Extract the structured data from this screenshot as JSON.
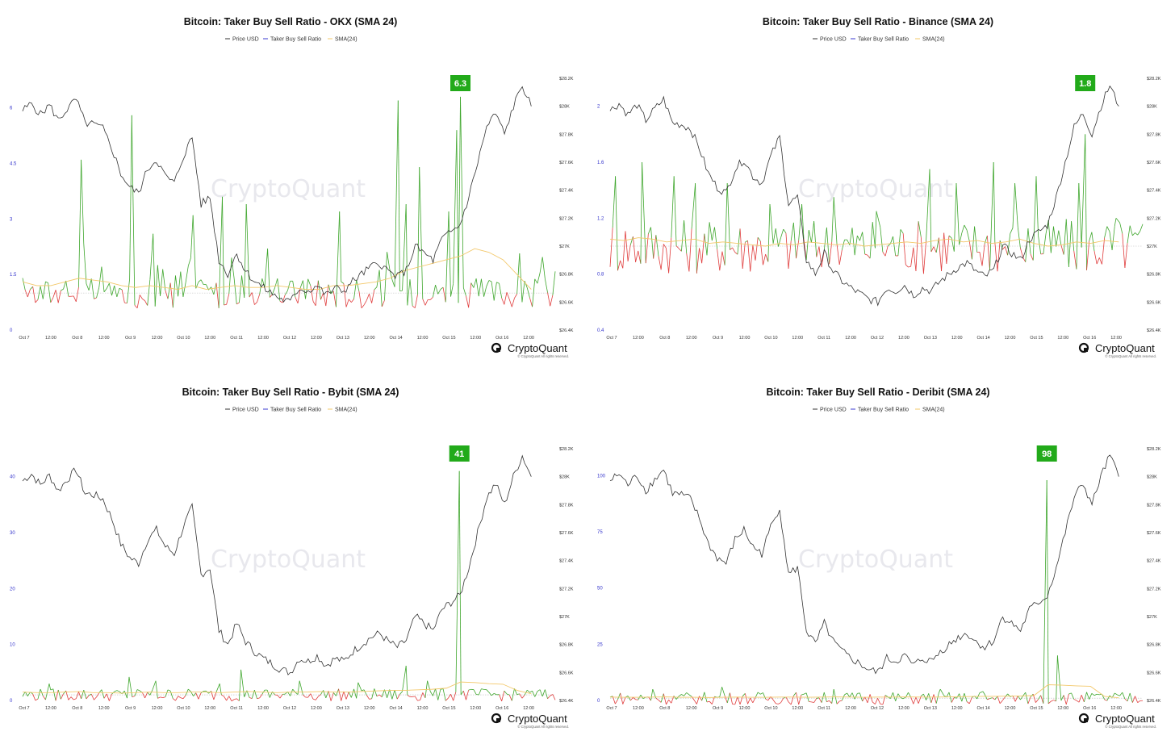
{
  "brand": {
    "name": "CryptoQuant",
    "copyright": "© CryptoQuant All rights reserved.",
    "watermark": "CryptoQuant"
  },
  "colors": {
    "price": "#333333",
    "ratio_up": "#3ea62c",
    "ratio_down": "#e03c3c",
    "ratio_legend": "#3b3bd1",
    "sma": "#f3c86a",
    "badge": "#22aa1a"
  },
  "legend": [
    "Price USD",
    "Taker Buy Sell Ratio",
    "SMA(24)"
  ],
  "x_ticks": [
    "Oct 7",
    "12:00",
    "Oct 8",
    "12:00",
    "Oct 9",
    "12:00",
    "Oct 10",
    "12:00",
    "Oct 11",
    "12:00",
    "Oct 12",
    "12:00",
    "Oct 13",
    "12:00",
    "Oct 14",
    "12:00",
    "Oct 15",
    "12:00",
    "Oct 16",
    "12:00"
  ],
  "chart_data": [
    {
      "type": "line",
      "title": "Bitcoin: Taker Buy Sell Ratio - OKX (SMA 24)",
      "left_ticks": [
        "0",
        "1.5",
        "3",
        "4.5",
        "6"
      ],
      "left_values": [
        0,
        1.5,
        3,
        4.5,
        6
      ],
      "ylim": [
        0,
        6.8
      ],
      "right_ticks": [
        "$26.4K",
        "$26.6K",
        "$26.8K",
        "$27K",
        "$27.2K",
        "$27.4K",
        "$27.6K",
        "$27.8K",
        "$28K",
        "$28.2K"
      ],
      "right_lim": [
        26400,
        28200
      ],
      "badge": "6.3",
      "peak": {
        "x": 0.822,
        "value": 6.3
      },
      "ratio_base": 1.0,
      "series": [
        {
          "name": "Price USD",
          "values": [
            27970,
            28020,
            27940,
            28010,
            27900,
            27980,
            28050,
            27880,
            27870,
            27840,
            27700,
            27520,
            27420,
            27380,
            27550,
            27620,
            27500,
            27450,
            27640,
            27780,
            27300,
            27350,
            26900,
            26800,
            26950,
            26820,
            26750,
            26700,
            26660,
            26620,
            26600,
            26700,
            26680,
            26720,
            26650,
            26700,
            26680,
            26750,
            26800,
            26850,
            26880,
            26820,
            26780,
            26830,
            27000,
            26950,
            26900,
            27050,
            27100,
            27150,
            27350,
            27600,
            27850,
            27950,
            27800,
            28000,
            28150,
            28000
          ]
        },
        {
          "name": "Taker Buy Sell Ratio",
          "spikes": [
            [
              0.11,
              4.6
            ],
            [
              0.205,
              5.8
            ],
            [
              0.245,
              2.6
            ],
            [
              0.32,
              3.1
            ],
            [
              0.375,
              3.6
            ],
            [
              0.42,
              3.4
            ],
            [
              0.46,
              2.2
            ],
            [
              0.595,
              3.2
            ],
            [
              0.705,
              6.2
            ],
            [
              0.72,
              3.4
            ],
            [
              0.745,
              4.4
            ],
            [
              0.8,
              3.2
            ],
            [
              0.815,
              5.4
            ],
            [
              0.822,
              6.3
            ]
          ]
        },
        {
          "name": "SMA(24)",
          "values": [
            1.3,
            1.2,
            1.2,
            1.3,
            1.4,
            1.35,
            1.3,
            1.2,
            1.15,
            1.2,
            1.15,
            1.1,
            1.2,
            1.1,
            1.15,
            1.2,
            1.15,
            1.15,
            1.2,
            1.15,
            1.1,
            1.1,
            1.2,
            1.2,
            1.25,
            1.3,
            1.4,
            1.6,
            1.7,
            1.8,
            1.9,
            2.0,
            2.2,
            2.1,
            1.9,
            1.5,
            1.1
          ]
        }
      ]
    },
    {
      "type": "line",
      "title": "Bitcoin: Taker Buy Sell Ratio - Binance (SMA 24)",
      "left_ticks": [
        "0.4",
        "0.8",
        "1.2",
        "1.6",
        "2"
      ],
      "left_values": [
        0.4,
        0.8,
        1.2,
        1.6,
        2
      ],
      "ylim": [
        0.4,
        2.2
      ],
      "right_ticks": [
        "$26.4K",
        "$26.6K",
        "$26.8K",
        "$27K",
        "$27.2K",
        "$27.4K",
        "$27.6K",
        "$27.8K",
        "$28K",
        "$28.2K"
      ],
      "right_lim": [
        26400,
        28200
      ],
      "badge": "1.8",
      "peak": {
        "x": 0.892,
        "value": 1.8
      },
      "ratio_base": 1.0,
      "series": [
        {
          "name": "Price USD",
          "values": [
            27970,
            28020,
            27940,
            28010,
            27900,
            27980,
            28050,
            27880,
            27870,
            27840,
            27700,
            27520,
            27420,
            27380,
            27550,
            27620,
            27500,
            27450,
            27640,
            27780,
            27300,
            27350,
            26900,
            26800,
            26950,
            26820,
            26750,
            26700,
            26660,
            26620,
            26600,
            26700,
            26680,
            26720,
            26650,
            26700,
            26680,
            26750,
            26800,
            26850,
            26880,
            26820,
            26780,
            26830,
            27000,
            26950,
            26900,
            27050,
            27100,
            27150,
            27350,
            27600,
            27850,
            27950,
            27800,
            28000,
            28150,
            28000
          ]
        },
        {
          "name": "Taker Buy Sell Ratio",
          "spikes": [
            [
              0.01,
              1.5
            ],
            [
              0.06,
              1.6
            ],
            [
              0.12,
              1.5
            ],
            [
              0.16,
              1.45
            ],
            [
              0.22,
              1.45
            ],
            [
              0.3,
              1.3
            ],
            [
              0.36,
              1.3
            ],
            [
              0.42,
              1.35
            ],
            [
              0.5,
              1.25
            ],
            [
              0.6,
              1.55
            ],
            [
              0.65,
              1.45
            ],
            [
              0.72,
              1.6
            ],
            [
              0.76,
              1.45
            ],
            [
              0.8,
              1.5
            ],
            [
              0.88,
              1.45
            ],
            [
              0.892,
              1.8
            ],
            [
              0.95,
              1.2
            ]
          ]
        },
        {
          "name": "SMA(24)",
          "values": [
            1.05,
            1.04,
            1.06,
            1.05,
            1.03,
            1.04,
            1.05,
            1.02,
            1.03,
            1.02,
            1.01,
            1.0,
            1.02,
            1.01,
            1.03,
            1.02,
            1.01,
            1.02,
            1.0,
            1.01,
            1.02,
            1.03,
            1.02,
            1.04,
            1.05,
            1.03,
            1.04,
            1.02,
            1.03,
            1.05,
            1.02,
            1.0,
            1.01,
            1.03,
            1.02,
            1.04,
            1.03
          ]
        }
      ]
    },
    {
      "type": "line",
      "title": "Bitcoin: Taker Buy Sell Ratio - Bybit (SMA 24)",
      "left_ticks": [
        "0",
        "10",
        "20",
        "30",
        "40"
      ],
      "left_values": [
        0,
        10,
        20,
        30,
        40
      ],
      "ylim": [
        0,
        45
      ],
      "right_ticks": [
        "$26.4K",
        "$26.6K",
        "$26.8K",
        "$27K",
        "$27.2K",
        "$27.4K",
        "$27.6K",
        "$27.8K",
        "$28K",
        "$28.2K"
      ],
      "right_lim": [
        26400,
        28200
      ],
      "badge": "41",
      "peak": {
        "x": 0.82,
        "value": 41
      },
      "ratio_base": 1.0,
      "series": [
        {
          "name": "Price USD",
          "values": [
            27970,
            28020,
            27940,
            28010,
            27900,
            27980,
            28050,
            27880,
            27870,
            27840,
            27700,
            27520,
            27420,
            27380,
            27550,
            27620,
            27500,
            27450,
            27640,
            27780,
            27300,
            27350,
            26900,
            26800,
            26950,
            26820,
            26750,
            26700,
            26660,
            26620,
            26600,
            26700,
            26680,
            26720,
            26650,
            26700,
            26680,
            26750,
            26800,
            26850,
            26880,
            26820,
            26780,
            26830,
            27000,
            26950,
            26900,
            27050,
            27100,
            27150,
            27350,
            27600,
            27850,
            27950,
            27800,
            28000,
            28150,
            28000
          ]
        },
        {
          "name": "Taker Buy Sell Ratio",
          "spikes": [
            [
              0.05,
              3
            ],
            [
              0.2,
              4.2
            ],
            [
              0.25,
              3.5
            ],
            [
              0.37,
              3
            ],
            [
              0.41,
              5.5
            ],
            [
              0.52,
              3.5
            ],
            [
              0.63,
              3.2
            ],
            [
              0.72,
              6.2
            ],
            [
              0.76,
              3.5
            ],
            [
              0.82,
              41
            ]
          ]
        },
        {
          "name": "SMA(24)",
          "values": [
            1.5,
            1.4,
            1.4,
            1.5,
            1.6,
            1.4,
            1.4,
            1.3,
            1.4,
            1.5,
            1.4,
            1.4,
            1.5,
            1.5,
            1.4,
            1.5,
            1.6,
            1.5,
            1.4,
            1.5,
            1.5,
            1.6,
            1.5,
            1.5,
            1.6,
            1.7,
            1.8,
            1.8,
            1.9,
            2.0,
            2.2,
            3.3,
            3.2,
            3.0,
            2.9,
            1.8,
            1.2
          ]
        }
      ]
    },
    {
      "type": "line",
      "title": "Bitcoin: Taker Buy Sell Ratio - Deribit (SMA 24)",
      "left_ticks": [
        "0",
        "25",
        "50",
        "75",
        "100"
      ],
      "left_values": [
        0,
        25,
        50,
        75,
        100
      ],
      "ylim": [
        0,
        112
      ],
      "right_ticks": [
        "$26.4K",
        "$26.6K",
        "$26.8K",
        "$27K",
        "$27.2K",
        "$27.4K",
        "$27.6K",
        "$27.8K",
        "$28K",
        "$28.2K"
      ],
      "right_lim": [
        26400,
        28200
      ],
      "badge": "98",
      "peak": {
        "x": 0.82,
        "value": 98
      },
      "ratio_base": 1.0,
      "series": [
        {
          "name": "Price USD",
          "values": [
            27970,
            28020,
            27940,
            28010,
            27900,
            27980,
            28050,
            27880,
            27870,
            27840,
            27700,
            27520,
            27420,
            27380,
            27550,
            27620,
            27500,
            27450,
            27640,
            27780,
            27300,
            27350,
            26900,
            26800,
            26950,
            26820,
            26750,
            26700,
            26660,
            26620,
            26600,
            26700,
            26680,
            26720,
            26650,
            26700,
            26680,
            26750,
            26800,
            26850,
            26880,
            26820,
            26780,
            26830,
            27000,
            26950,
            26900,
            27050,
            27100,
            27150,
            27350,
            27600,
            27850,
            27950,
            27800,
            28000,
            28150,
            28000
          ]
        },
        {
          "name": "Taker Buy Sell Ratio",
          "spikes": [
            [
              0.08,
              5
            ],
            [
              0.21,
              6
            ],
            [
              0.42,
              5
            ],
            [
              0.62,
              5
            ],
            [
              0.7,
              4
            ],
            [
              0.82,
              98
            ],
            [
              0.84,
              20
            ]
          ]
        },
        {
          "name": "SMA(24)",
          "values": [
            1.5,
            1.4,
            1.4,
            1.5,
            1.6,
            1.4,
            1.4,
            1.3,
            1.4,
            1.5,
            1.4,
            1.4,
            1.5,
            1.5,
            1.4,
            1.5,
            1.6,
            1.5,
            1.4,
            1.5,
            1.5,
            1.6,
            1.5,
            1.5,
            1.6,
            1.7,
            1.8,
            1.8,
            1.9,
            2.0,
            2.2,
            7.0,
            6.8,
            6.5,
            6.3,
            1.8,
            1.2
          ]
        }
      ]
    }
  ]
}
